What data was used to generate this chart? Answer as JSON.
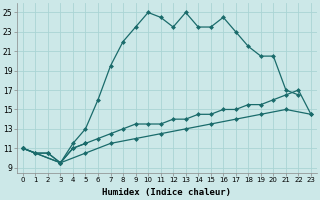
{
  "xlabel": "Humidex (Indice chaleur)",
  "bg_color": "#cce8e8",
  "grid_color": "#aad4d4",
  "line_color": "#1a6b6b",
  "xlim": [
    -0.5,
    23.5
  ],
  "ylim": [
    8.5,
    26.0
  ],
  "xticks": [
    0,
    1,
    2,
    3,
    4,
    5,
    6,
    7,
    8,
    9,
    10,
    11,
    12,
    13,
    14,
    15,
    16,
    17,
    18,
    19,
    20,
    21,
    22,
    23
  ],
  "yticks": [
    9,
    11,
    13,
    15,
    17,
    19,
    21,
    23,
    25
  ],
  "line1_x": [
    0,
    1,
    2,
    3,
    4,
    5,
    6,
    7,
    8,
    9,
    10,
    11,
    12,
    13,
    14,
    15,
    16,
    17,
    18,
    19,
    20,
    21,
    22
  ],
  "line1_y": [
    11,
    10.5,
    10.5,
    9.5,
    11.5,
    13,
    16,
    19.5,
    22,
    23.5,
    25,
    24.5,
    23.5,
    25,
    23.5,
    23.5,
    24.5,
    23,
    21.5,
    20.5,
    20.5,
    17,
    16.5
  ],
  "line2_x": [
    0,
    1,
    2,
    3,
    4,
    5
  ],
  "line2_y": [
    11,
    10.5,
    10.5,
    9.5,
    11,
    11.5
  ],
  "line3_x": [
    0,
    3,
    4,
    5,
    6,
    7,
    8,
    9,
    10,
    11,
    12,
    13,
    14,
    15,
    16,
    17,
    18,
    19,
    20,
    21,
    22,
    23
  ],
  "line3_y": [
    11,
    9.5,
    11,
    11.5,
    12,
    12.5,
    13,
    13.5,
    13.5,
    13.5,
    14,
    14,
    14.5,
    14.5,
    15,
    15,
    15.5,
    15.5,
    16,
    16.5,
    17,
    14.5
  ],
  "line4_x": [
    0,
    3,
    5,
    7,
    9,
    11,
    13,
    15,
    17,
    19,
    21,
    23
  ],
  "line4_y": [
    11,
    9.5,
    10.5,
    11.5,
    12,
    12.5,
    13,
    13.5,
    14,
    14.5,
    15,
    14.5
  ]
}
